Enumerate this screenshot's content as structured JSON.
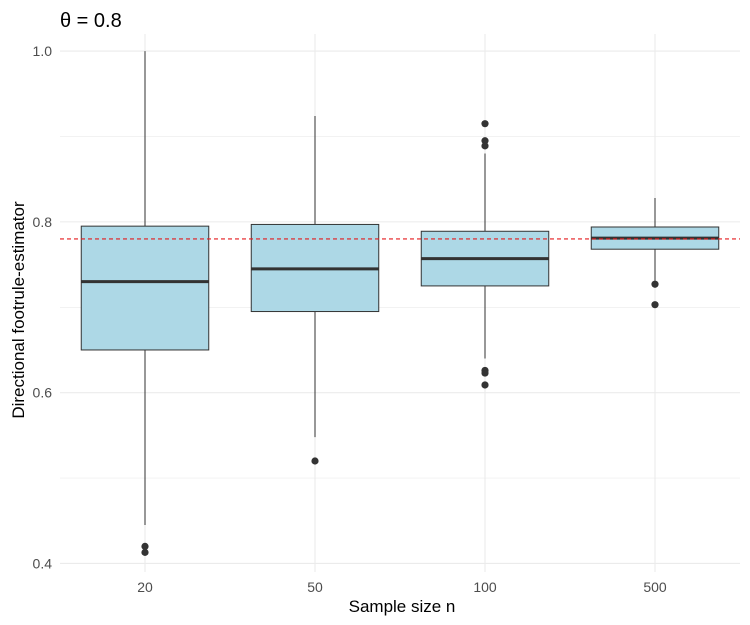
{
  "chart_data": {
    "type": "boxplot",
    "title": "θ = 0.8",
    "xlabel": "Sample size n",
    "ylabel": "Directional footrule-estimator",
    "categories": [
      "20",
      "50",
      "100",
      "500"
    ],
    "ylim": [
      0.39,
      1.02
    ],
    "y_ticks": [
      0.4,
      0.6,
      0.8,
      1.0
    ],
    "y_tick_labels": [
      "0.4",
      "0.6",
      "0.8",
      "1.0"
    ],
    "reference_line": 0.78,
    "boxes": [
      {
        "label": "20",
        "whisker_low": 0.445,
        "q1": 0.65,
        "median": 0.73,
        "q3": 0.795,
        "whisker_high": 1.0,
        "outliers": [
          0.42,
          0.413
        ]
      },
      {
        "label": "50",
        "whisker_low": 0.548,
        "q1": 0.695,
        "median": 0.745,
        "q3": 0.797,
        "whisker_high": 0.924,
        "outliers": [
          0.52
        ]
      },
      {
        "label": "100",
        "whisker_low": 0.64,
        "q1": 0.725,
        "median": 0.757,
        "q3": 0.789,
        "whisker_high": 0.88,
        "outliers": [
          0.915,
          0.895,
          0.889,
          0.626,
          0.623,
          0.609
        ]
      },
      {
        "label": "500",
        "whisker_low": 0.73,
        "q1": 0.768,
        "median": 0.781,
        "q3": 0.794,
        "whisker_high": 0.828,
        "outliers": [
          0.727,
          0.703
        ]
      }
    ],
    "grid": true,
    "colors": {
      "box_fill": "#add8e6",
      "box_stroke": "#333333",
      "median": "#333333",
      "whisker": "#333333",
      "outlier": "#333333",
      "reference": "#e41a1c",
      "grid": "#ebebeb"
    }
  }
}
